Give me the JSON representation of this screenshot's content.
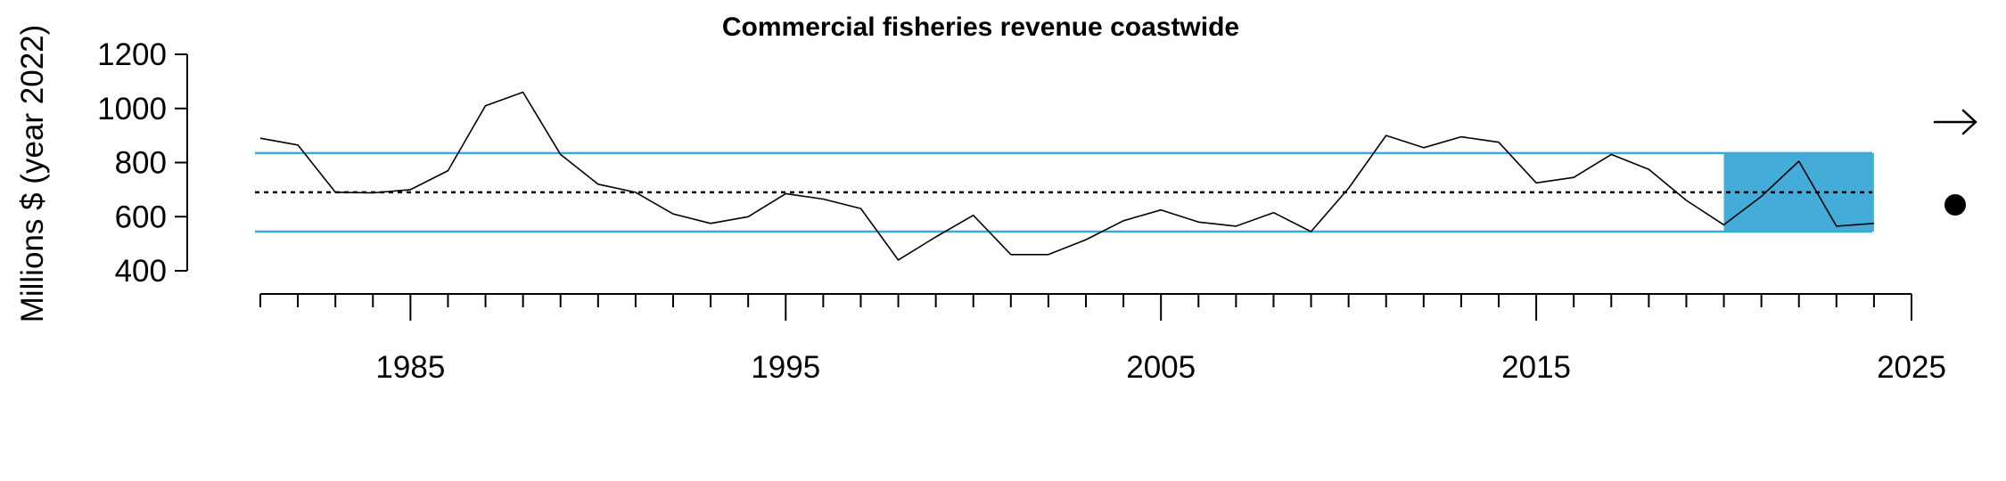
{
  "chart_data": {
    "type": "line",
    "title": "Commercial fisheries revenue coastwide",
    "xlabel": "",
    "ylabel": "Millions $ (year 2022)",
    "xlim": [
      1981,
      2025
    ],
    "ylim": [
      400,
      1200
    ],
    "x_ticks": [
      1985,
      1995,
      2005,
      2015,
      2025
    ],
    "y_ticks": [
      400,
      600,
      800,
      1000,
      1200
    ],
    "grid": false,
    "x": [
      1981,
      1982,
      1983,
      1984,
      1985,
      1986,
      1987,
      1988,
      1989,
      1990,
      1991,
      1992,
      1993,
      1994,
      1995,
      1996,
      1997,
      1998,
      1999,
      2000,
      2001,
      2002,
      2003,
      2004,
      2005,
      2006,
      2007,
      2008,
      2009,
      2010,
      2011,
      2012,
      2013,
      2014,
      2015,
      2016,
      2017,
      2018,
      2019,
      2020,
      2021,
      2022,
      2023,
      2024
    ],
    "values": [
      890,
      865,
      690,
      688,
      700,
      770,
      1010,
      1060,
      830,
      720,
      690,
      610,
      575,
      600,
      685,
      665,
      630,
      440,
      525,
      605,
      460,
      460,
      515,
      585,
      625,
      580,
      565,
      615,
      545,
      705,
      900,
      855,
      895,
      875,
      725,
      745,
      830,
      775,
      660,
      570,
      675,
      805,
      565,
      575
    ],
    "mean": 690,
    "sd_band": [
      545,
      835
    ],
    "highlight_x_range": [
      2020,
      2024
    ],
    "colors": {
      "series": "#000000",
      "sd_lines": "#3fa9d6",
      "highlight": "#43acd8",
      "mean_line": "#000000"
    },
    "trend_indicator": "right-arrow-icon",
    "mean_indicator": "filled-circle-icon"
  }
}
